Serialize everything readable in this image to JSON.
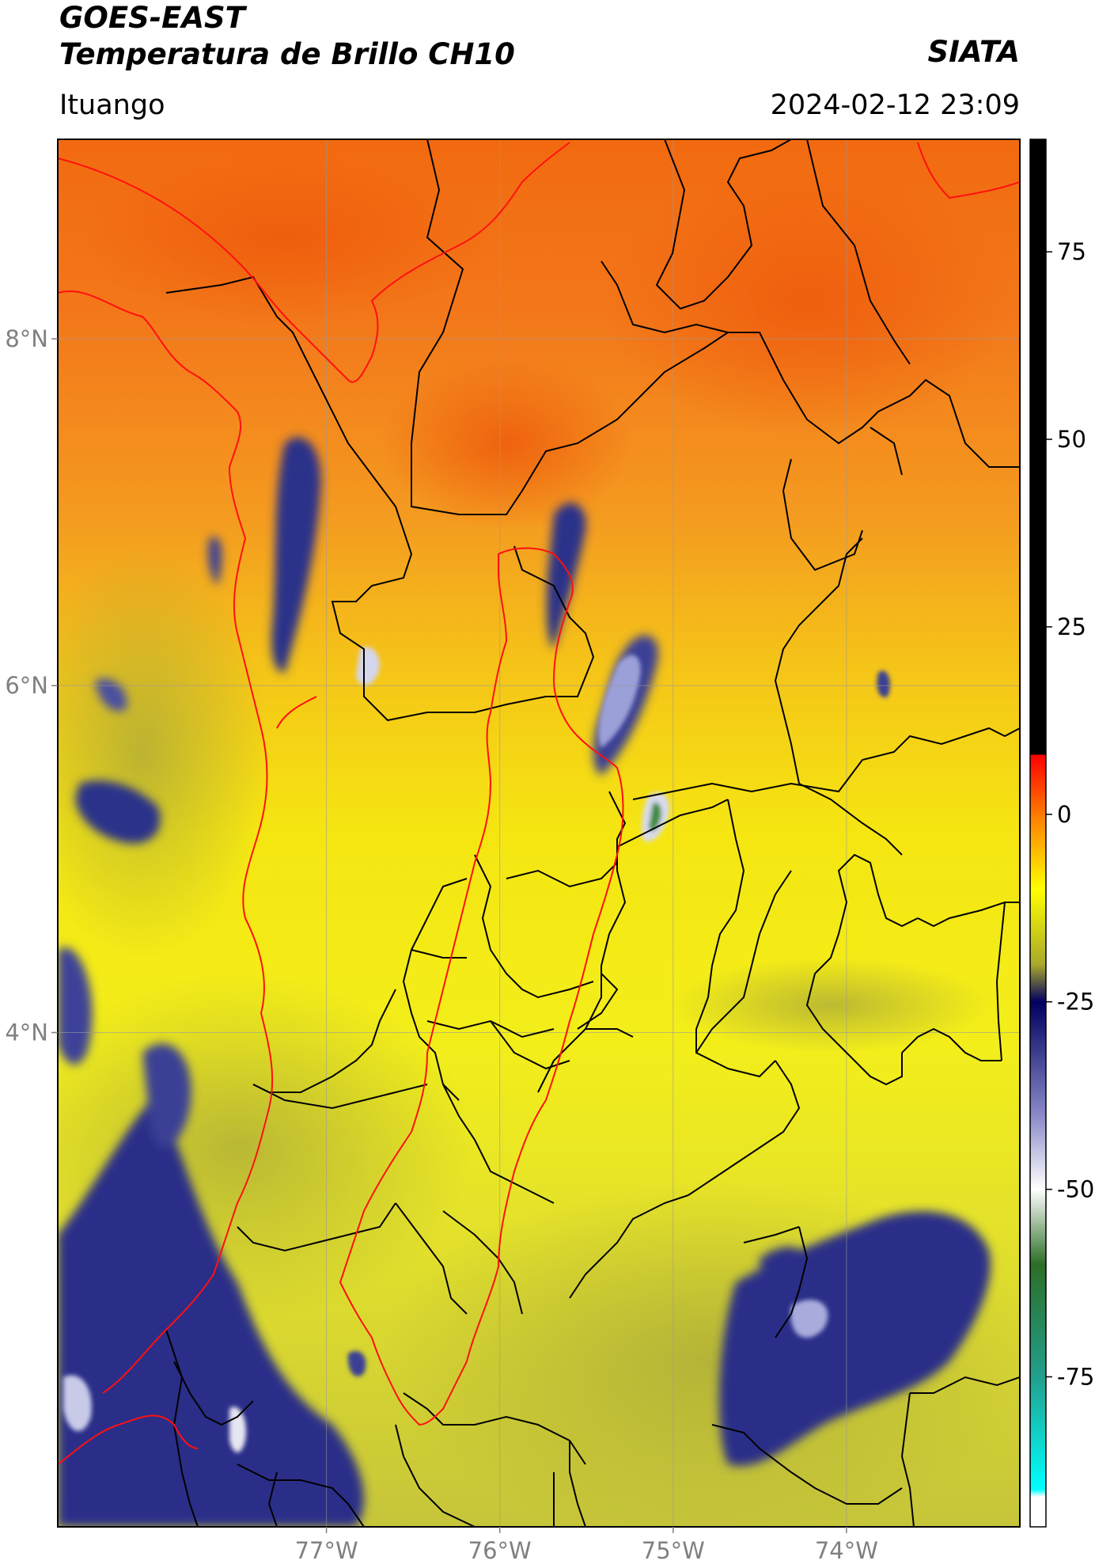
{
  "header": {
    "satellite": "GOES-EAST",
    "product": "Temperatura de Brillo CH10",
    "brand": "SIATA",
    "location": "Ituango",
    "datetime": "2024-02-12 23:09"
  },
  "map": {
    "lon_range": [
      -78.55,
      -73.0
    ],
    "lat_range": [
      1.15,
      9.15
    ],
    "lon_ticks": [
      {
        "value": -77,
        "label": "77°W"
      },
      {
        "value": -76,
        "label": "76°W"
      },
      {
        "value": -75,
        "label": "75°W"
      },
      {
        "value": -74,
        "label": "74°W"
      }
    ],
    "lat_ticks": [
      {
        "value": 8,
        "label": "8°N"
      },
      {
        "value": 6,
        "label": "6°N"
      },
      {
        "value": 4,
        "label": "4°N"
      }
    ],
    "grid": true,
    "background_colors": {
      "north": "#f26a10",
      "middle": "#f5e612",
      "south": "#c8c832"
    },
    "cold_cloud_colors": {
      "dark": "#232a80",
      "mid": "#6c70b8",
      "light": "#e6e6f0",
      "core": "#3d8a3a"
    }
  },
  "colorbar": {
    "range": [
      -95,
      90
    ],
    "ticks": [
      {
        "value": 75,
        "label": "75"
      },
      {
        "value": 50,
        "label": "50"
      },
      {
        "value": 25,
        "label": "25"
      },
      {
        "value": 0,
        "label": "0"
      },
      {
        "value": -25,
        "label": "-25"
      },
      {
        "value": -50,
        "label": "-50"
      },
      {
        "value": -75,
        "label": "-75"
      }
    ],
    "stops": [
      {
        "value": 90,
        "color": "#000000"
      },
      {
        "value": 8,
        "color": "#000000"
      },
      {
        "value": 7.9,
        "color": "#ff0000"
      },
      {
        "value": 0,
        "color": "#ff7a00"
      },
      {
        "value": -10,
        "color": "#ffff00"
      },
      {
        "value": -20,
        "color": "#a9a92a"
      },
      {
        "value": -25,
        "color": "#000060"
      },
      {
        "value": -40,
        "color": "#8888c8"
      },
      {
        "value": -50,
        "color": "#ffffff"
      },
      {
        "value": -60,
        "color": "#2c6e26"
      },
      {
        "value": -75,
        "color": "#22a08c"
      },
      {
        "value": -90,
        "color": "#00ffff"
      },
      {
        "value": -91,
        "color": "#ffffff"
      },
      {
        "value": -95,
        "color": "#ffffff"
      }
    ]
  }
}
